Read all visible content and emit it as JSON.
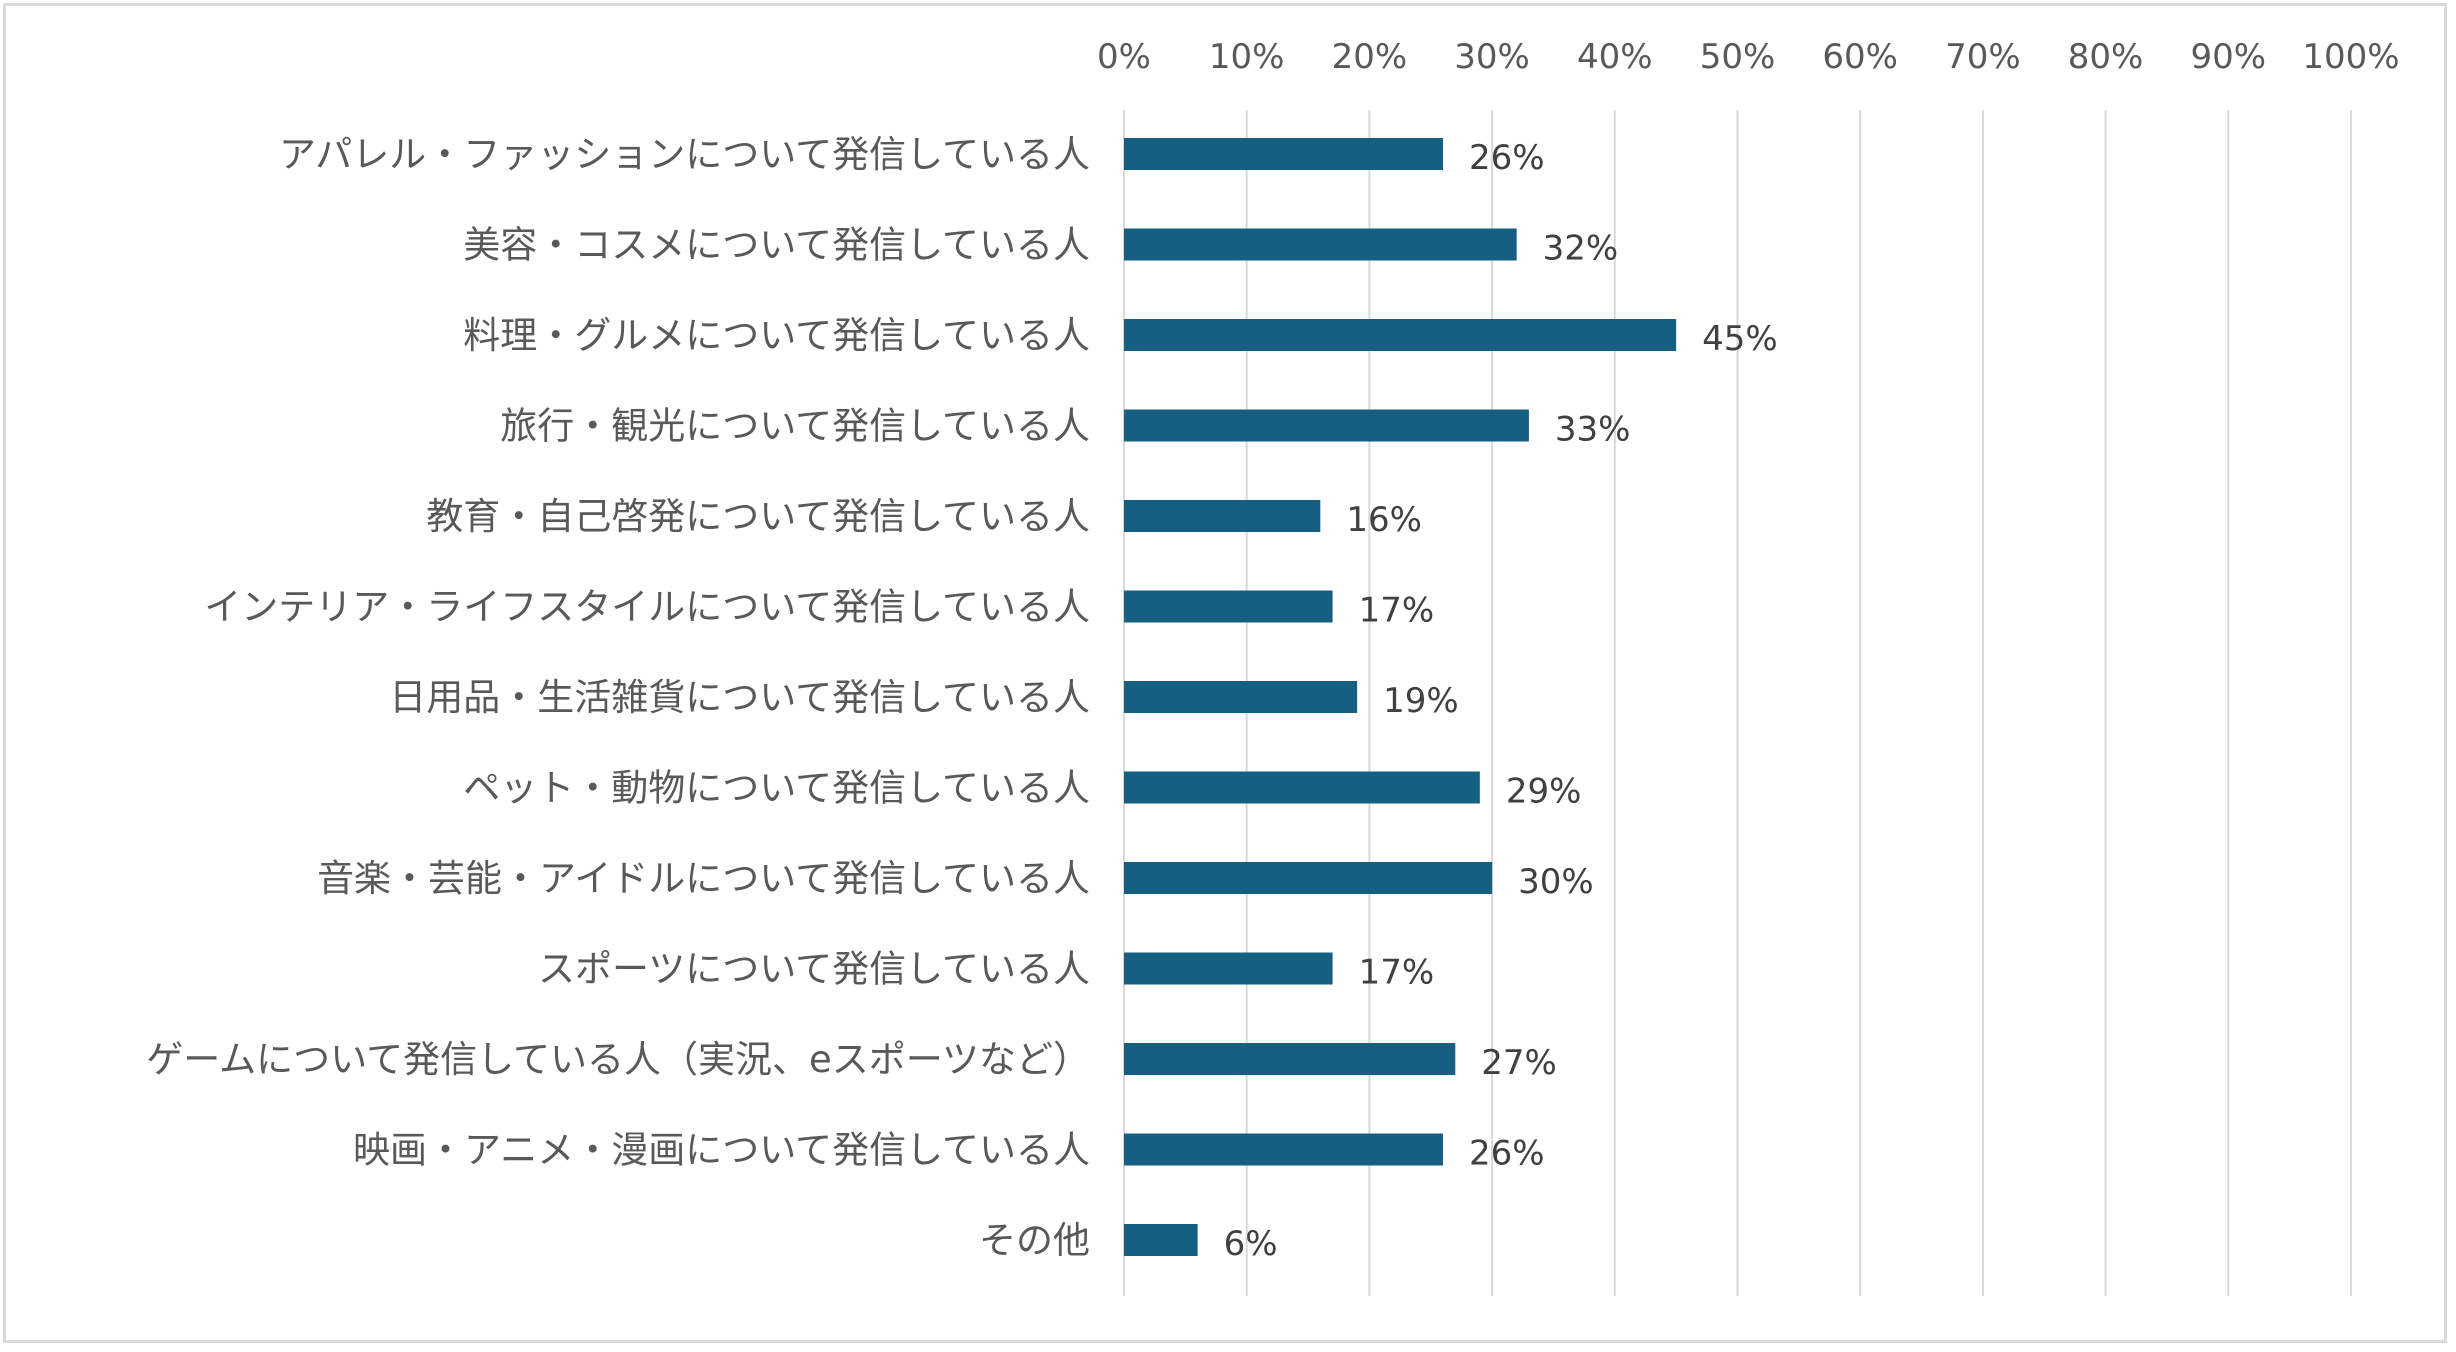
{
  "chart_data": {
    "type": "bar",
    "orientation": "horizontal",
    "title": "",
    "xlabel": "",
    "ylabel": "",
    "categories": [
      "アパレル・ファッションについて発信している人",
      "美容・コスメについて発信している人",
      "料理・グルメについて発信している人",
      "旅行・観光について発信している人",
      "教育・自己啓発について発信している人",
      "インテリア・ライフスタイルについて発信している人",
      "日用品・生活雑貨について発信している人",
      "ペット・動物について発信している人",
      "音楽・芸能・アイドルについて発信している人",
      "スポーツについて発信している人",
      "ゲームについて発信している人（実況、eスポーツなど）",
      "映画・アニメ・漫画について発信している人",
      "その他"
    ],
    "values": [
      26,
      32,
      45,
      33,
      16,
      17,
      19,
      29,
      30,
      17,
      27,
      26,
      6
    ],
    "data_labels": [
      "26%",
      "32%",
      "45%",
      "33%",
      "16%",
      "17%",
      "19%",
      "29%",
      "30%",
      "17%",
      "27%",
      "26%",
      "6%"
    ],
    "xlim": [
      0,
      100
    ],
    "x_ticks": [
      0,
      10,
      20,
      30,
      40,
      50,
      60,
      70,
      80,
      90,
      100
    ],
    "x_tick_labels": [
      "0%",
      "10%",
      "20%",
      "30%",
      "40%",
      "50%",
      "60%",
      "70%",
      "80%",
      "90%",
      "100%"
    ],
    "x_axis_position": "top",
    "grid": true,
    "legend": "none",
    "bar_color": "#155f82",
    "grid_color": "#d9d9d9"
  }
}
